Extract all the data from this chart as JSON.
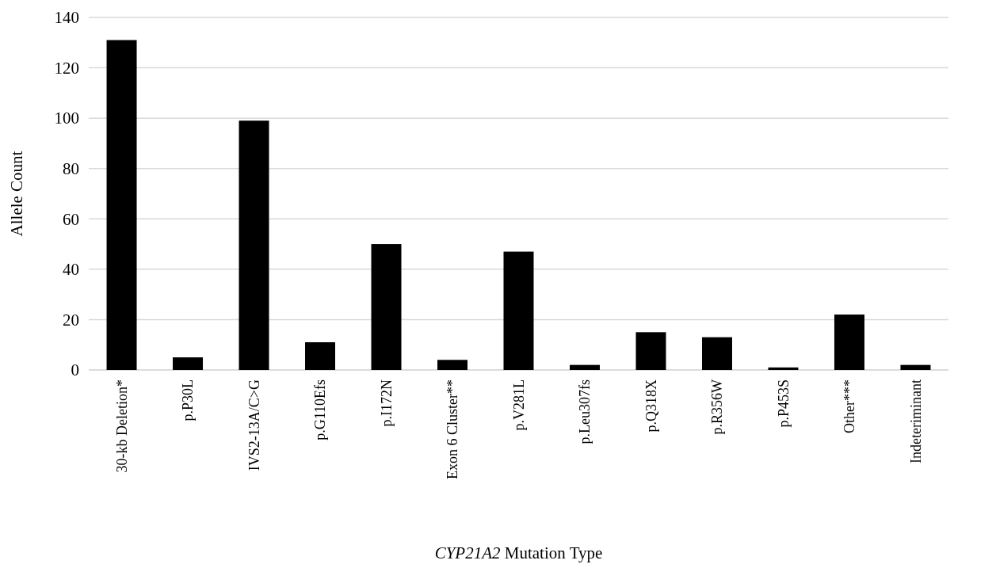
{
  "chart_data": {
    "type": "bar",
    "xlabel": "CYP21A2 Mutation Type",
    "ylabel": "Allele Count",
    "categories": [
      "30-kb Deletion*",
      "p.P30L",
      "IVS2-13A/C>G",
      "p.G110Efs",
      "p.I172N",
      "Exon 6 Cluster**",
      "p.V281L",
      "p.Leu307fs",
      "p.Q318X",
      "p.R356W",
      "p.P453S",
      "Other***",
      "Indeteriminant"
    ],
    "values": [
      131,
      5,
      99,
      11,
      50,
      4,
      47,
      2,
      15,
      13,
      1,
      22,
      2
    ],
    "color": "#000000",
    "ylim": [
      0,
      140
    ],
    "yticks": [
      0,
      20,
      40,
      60,
      80,
      100,
      120,
      140
    ],
    "grid": "y"
  }
}
